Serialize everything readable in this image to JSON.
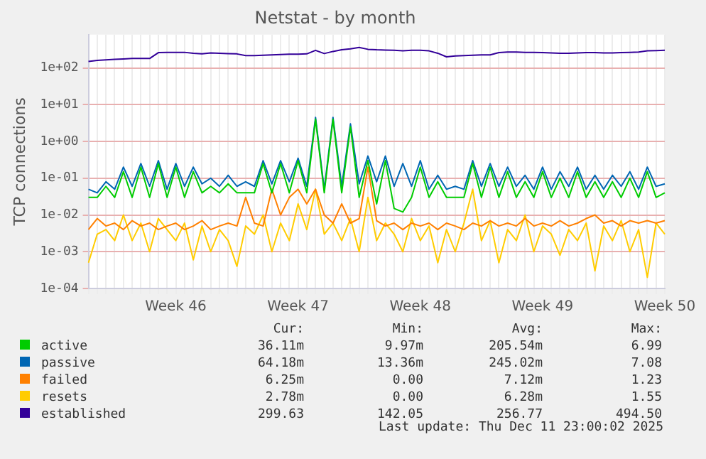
{
  "chart_data": {
    "type": "line",
    "title": "Netstat - by month",
    "ylabel": "TCP connections",
    "log": "y",
    "grid": true,
    "legend": "bottom left",
    "marker": "none",
    "line_style": "solid",
    "categories": [
      null,
      null,
      null,
      null,
      null,
      null,
      null,
      null,
      null,
      null,
      "Week 46",
      null,
      null,
      null,
      null,
      null,
      null,
      null,
      null,
      null,
      null,
      null,
      null,
      null,
      "Week 47",
      null,
      null,
      null,
      null,
      null,
      null,
      null,
      null,
      null,
      null,
      null,
      null,
      null,
      "Week 48",
      null,
      null,
      null,
      null,
      null,
      null,
      null,
      null,
      null,
      null,
      null,
      null,
      null,
      "Week 49",
      null,
      null,
      null,
      null,
      null,
      null,
      null,
      null,
      null,
      null,
      null,
      null,
      null,
      "Week 50"
    ],
    "ylim": [
      0.0001,
      800
    ],
    "yticks": [
      {
        "value": 0.0001,
        "label": "1e-04"
      },
      {
        "value": 0.001,
        "label": "1e-03"
      },
      {
        "value": 0.01,
        "label": "1e-02"
      },
      {
        "value": 0.1,
        "label": "1e-01"
      },
      {
        "value": 1,
        "label": "1e+00"
      },
      {
        "value": 10,
        "label": "1e+01"
      },
      {
        "value": 100,
        "label": "1e+02"
      }
    ],
    "series": [
      {
        "name": "active",
        "color": "#00cc00",
        "values": [
          0.03,
          0.03,
          0.06,
          0.03,
          0.15,
          0.03,
          0.2,
          0.03,
          0.25,
          0.03,
          0.2,
          0.03,
          0.15,
          0.04,
          0.06,
          0.04,
          0.07,
          0.04,
          0.04,
          0.04,
          0.25,
          0.04,
          0.25,
          0.04,
          0.3,
          0.04,
          4.0,
          0.04,
          4.0,
          0.04,
          2.5,
          0.03,
          0.3,
          0.02,
          0.3,
          0.015,
          0.012,
          0.03,
          0.2,
          0.03,
          0.08,
          0.03,
          0.03,
          0.03,
          0.25,
          0.03,
          0.2,
          0.03,
          0.15,
          0.03,
          0.08,
          0.03,
          0.15,
          0.03,
          0.1,
          0.03,
          0.15,
          0.03,
          0.08,
          0.03,
          0.08,
          0.03,
          0.1,
          0.03,
          0.15,
          0.03,
          0.04
        ]
      },
      {
        "name": "passive",
        "color": "#0066b3",
        "values": [
          0.05,
          0.04,
          0.08,
          0.05,
          0.2,
          0.06,
          0.25,
          0.06,
          0.3,
          0.05,
          0.25,
          0.06,
          0.2,
          0.07,
          0.1,
          0.06,
          0.12,
          0.06,
          0.08,
          0.06,
          0.3,
          0.07,
          0.3,
          0.08,
          0.35,
          0.06,
          4.5,
          0.05,
          4.5,
          0.06,
          3.0,
          0.07,
          0.4,
          0.08,
          0.4,
          0.06,
          0.25,
          0.06,
          0.3,
          0.05,
          0.12,
          0.05,
          0.06,
          0.05,
          0.3,
          0.06,
          0.25,
          0.06,
          0.2,
          0.06,
          0.12,
          0.05,
          0.2,
          0.05,
          0.15,
          0.06,
          0.2,
          0.05,
          0.12,
          0.05,
          0.12,
          0.06,
          0.15,
          0.05,
          0.2,
          0.06,
          0.07
        ]
      },
      {
        "name": "failed",
        "color": "#ff8000",
        "values": [
          0.004,
          0.008,
          0.005,
          0.006,
          0.004,
          0.007,
          0.005,
          0.006,
          0.004,
          0.005,
          0.006,
          0.004,
          0.005,
          0.007,
          0.004,
          0.005,
          0.006,
          0.005,
          0.03,
          0.006,
          0.005,
          0.05,
          0.01,
          0.03,
          0.05,
          0.02,
          0.05,
          0.01,
          0.006,
          0.02,
          0.006,
          0.008,
          0.2,
          0.007,
          0.005,
          0.006,
          0.004,
          0.006,
          0.005,
          0.006,
          0.004,
          0.006,
          0.005,
          0.004,
          0.006,
          0.005,
          0.007,
          0.005,
          0.006,
          0.005,
          0.008,
          0.005,
          0.006,
          0.005,
          0.007,
          0.005,
          0.006,
          0.008,
          0.01,
          0.006,
          0.007,
          0.005,
          0.007,
          0.006,
          0.007,
          0.006,
          0.007
        ]
      },
      {
        "name": "resets",
        "color": "#ffcc00",
        "values": [
          0.0005,
          0.003,
          0.004,
          0.002,
          0.01,
          0.002,
          0.006,
          0.001,
          0.008,
          0.004,
          0.002,
          0.006,
          0.0006,
          0.005,
          0.001,
          0.004,
          0.002,
          0.0004,
          0.005,
          0.003,
          0.01,
          0.001,
          0.006,
          0.002,
          0.02,
          0.004,
          0.05,
          0.003,
          0.006,
          0.002,
          0.008,
          0.001,
          0.03,
          0.002,
          0.006,
          0.003,
          0.001,
          0.008,
          0.002,
          0.005,
          0.0005,
          0.004,
          0.001,
          0.006,
          0.05,
          0.002,
          0.007,
          0.0005,
          0.004,
          0.002,
          0.01,
          0.001,
          0.005,
          0.003,
          0.0008,
          0.004,
          0.002,
          0.006,
          0.0003,
          0.005,
          0.002,
          0.007,
          0.001,
          0.004,
          0.0002,
          0.006,
          0.003
        ]
      },
      {
        "name": "established",
        "color": "#330099",
        "values": [
          150,
          160,
          165,
          170,
          175,
          180,
          180,
          180,
          260,
          265,
          265,
          265,
          250,
          240,
          255,
          250,
          245,
          240,
          215,
          215,
          220,
          225,
          230,
          235,
          235,
          240,
          300,
          245,
          280,
          310,
          330,
          360,
          320,
          310,
          305,
          300,
          290,
          300,
          300,
          290,
          250,
          200,
          210,
          215,
          220,
          225,
          225,
          260,
          270,
          270,
          265,
          265,
          260,
          255,
          250,
          250,
          255,
          260,
          260,
          255,
          255,
          260,
          265,
          270,
          290,
          295,
          300
        ]
      }
    ],
    "annotations": [
      "Cur:",
      "Min:",
      "Avg:",
      "Max:",
      "36.11m",
      "9.97m",
      "205.54m",
      "6.99",
      "64.18m",
      "13.36m",
      "245.02m",
      "7.08",
      "6.25m",
      "0.00",
      "7.12m",
      "1.23",
      "2.78m",
      "0.00",
      "6.28m",
      "1.55",
      "299.63",
      "142.05",
      "256.77",
      "494.50",
      "Last update: Thu Dec 11 23:00:02 2025"
    ]
  }
}
